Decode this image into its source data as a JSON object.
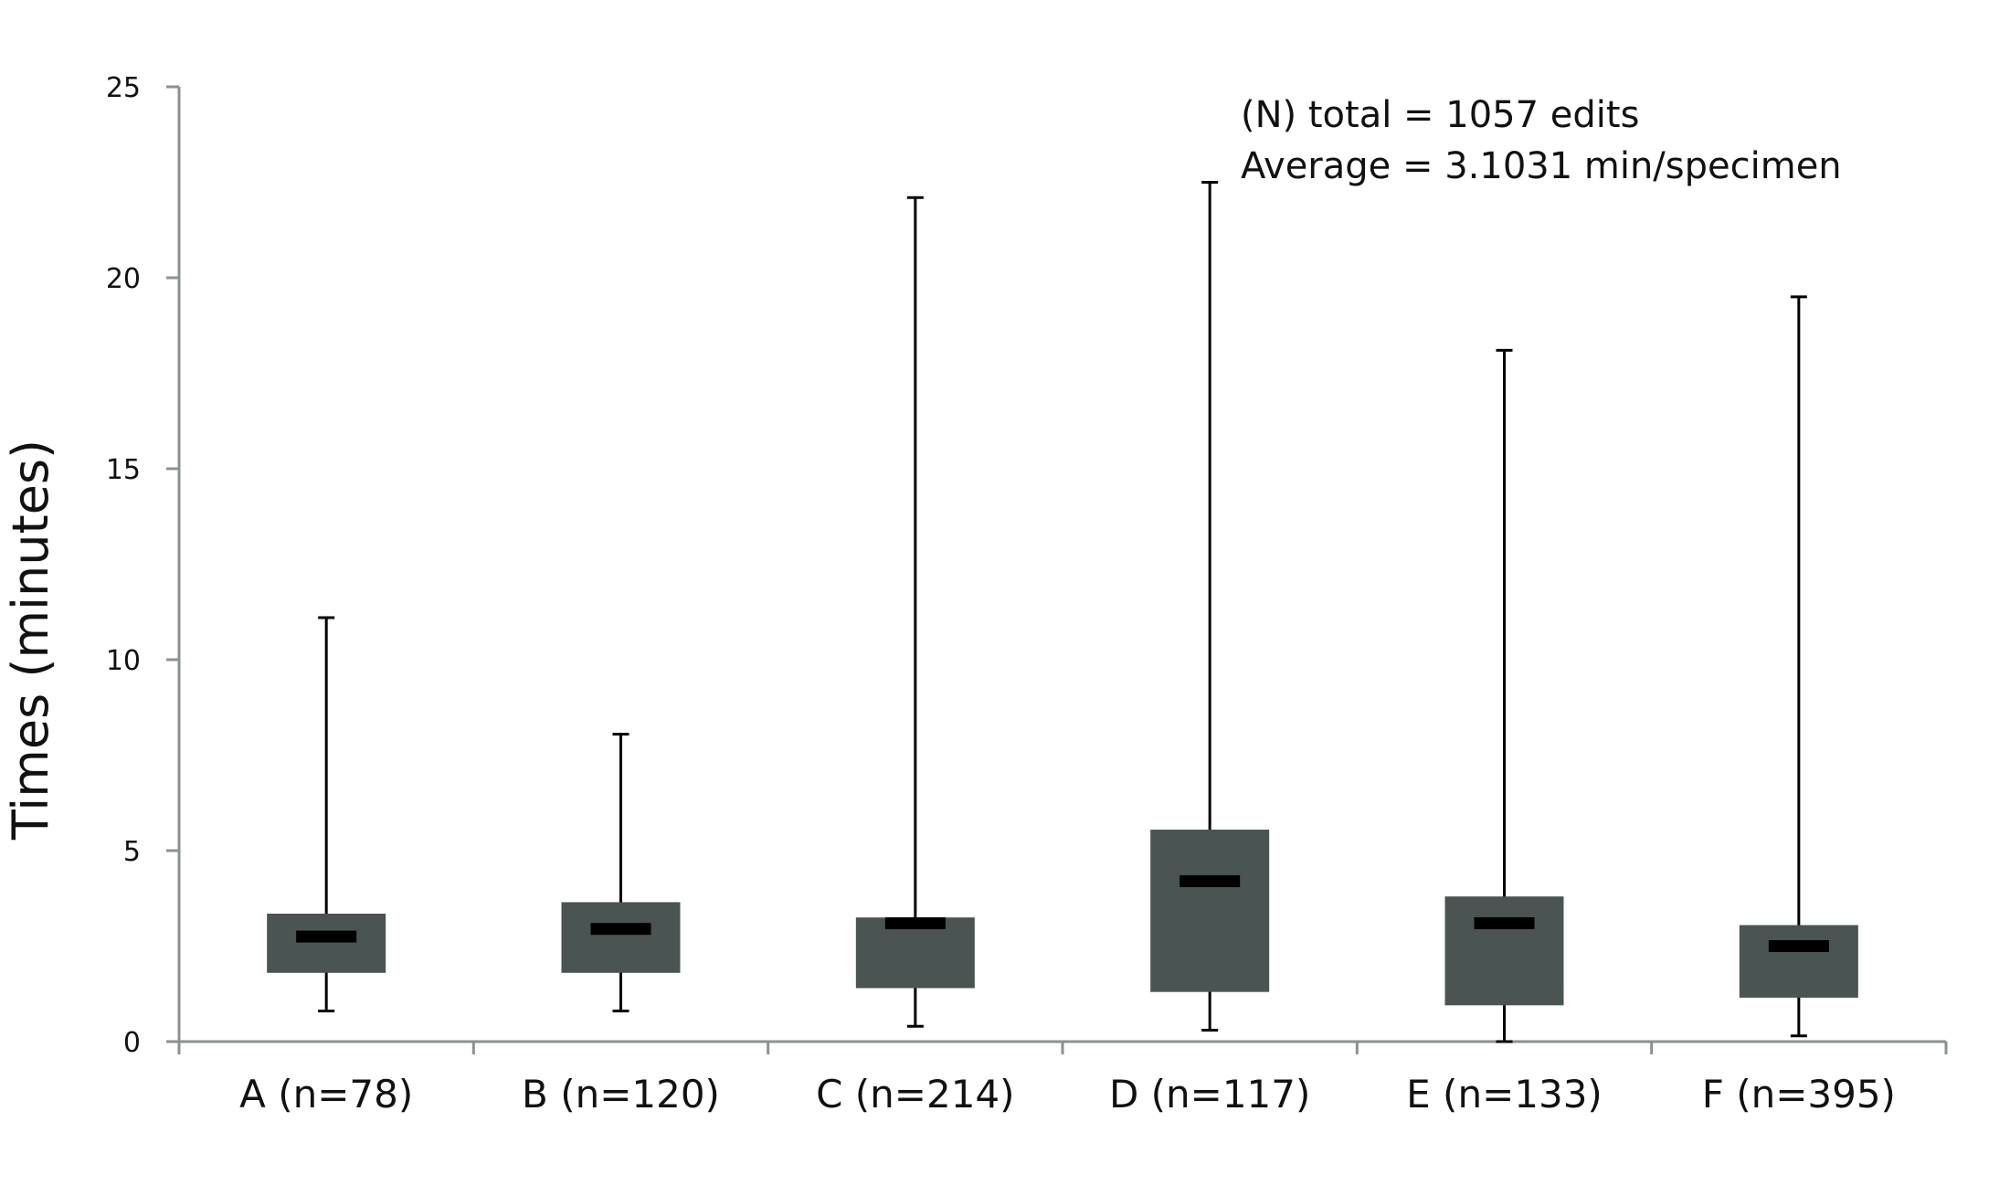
{
  "chart_data": {
    "type": "boxplot",
    "title": "",
    "xlabel": "",
    "ylabel": "Times (minutes)",
    "ylim": [
      0,
      25
    ],
    "yticks": [
      0,
      5,
      10,
      15,
      20,
      25
    ],
    "grid": false,
    "categories": [
      "A (n=78)",
      "B (n=120)",
      "C (n=214)",
      "D (n=117)",
      "E (n=133)",
      "F (n=395)"
    ],
    "boxes": [
      {
        "min": 0.8,
        "q1": 1.8,
        "median": 2.75,
        "q3": 3.35,
        "max": 11.1
      },
      {
        "min": 0.8,
        "q1": 1.8,
        "median": 2.95,
        "q3": 3.65,
        "max": 8.05
      },
      {
        "min": 0.4,
        "q1": 1.4,
        "median": 3.1,
        "q3": 3.25,
        "max": 22.1
      },
      {
        "min": 0.3,
        "q1": 1.3,
        "median": 4.2,
        "q3": 5.55,
        "max": 22.5
      },
      {
        "min": 0.0,
        "q1": 0.95,
        "median": 3.1,
        "q3": 3.8,
        "max": 18.1
      },
      {
        "min": 0.15,
        "q1": 1.15,
        "median": 2.5,
        "q3": 3.05,
        "max": 19.5
      }
    ],
    "annotations": [
      "(N) total = 1057 edits",
      "Average = 3.1031 min/specimen"
    ],
    "colors": {
      "box": "#4a5452",
      "median": "#000000",
      "whisker": "#000000",
      "axis": "#8a9290"
    }
  }
}
